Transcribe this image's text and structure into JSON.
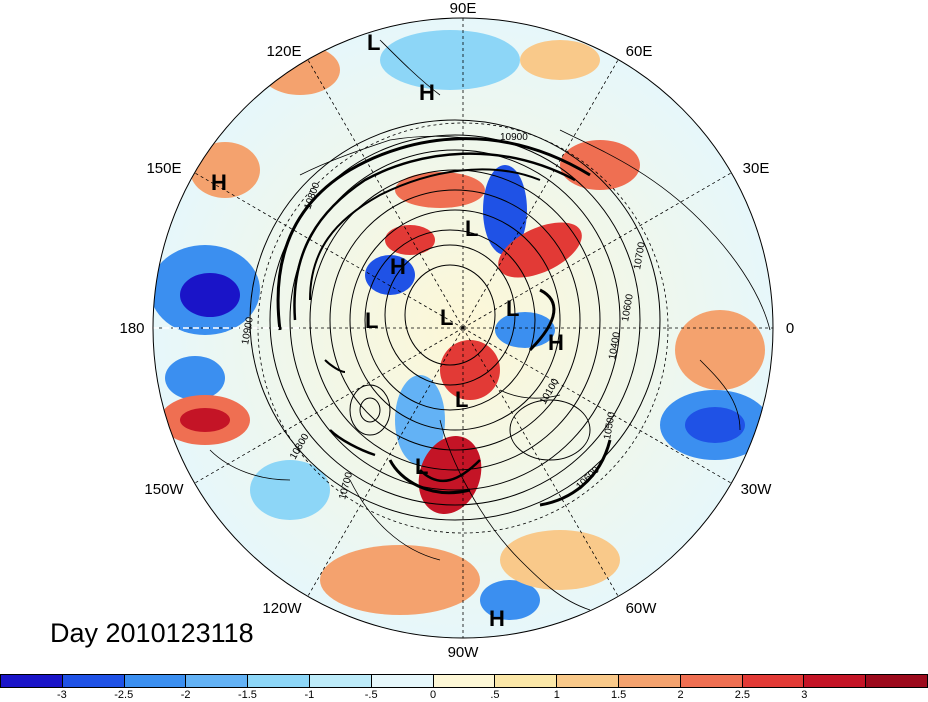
{
  "map": {
    "longitude_labels": [
      {
        "id": "90e",
        "text": "90E"
      },
      {
        "id": "60e",
        "text": "60E"
      },
      {
        "id": "30e",
        "text": "30E"
      },
      {
        "id": "0",
        "text": "0"
      },
      {
        "id": "30w",
        "text": "30W"
      },
      {
        "id": "60w",
        "text": "60W"
      },
      {
        "id": "90w",
        "text": "90W"
      },
      {
        "id": "120w",
        "text": "120W"
      },
      {
        "id": "150w",
        "text": "150W"
      },
      {
        "id": "180",
        "text": "180"
      },
      {
        "id": "150e",
        "text": "150E"
      },
      {
        "id": "120e",
        "text": "120E"
      }
    ],
    "pressure_centers": [
      {
        "type": "L",
        "text": "L"
      },
      {
        "type": "H",
        "text": "H"
      },
      {
        "type": "H",
        "text": "H"
      },
      {
        "type": "L",
        "text": "L"
      },
      {
        "type": "H",
        "text": "H"
      },
      {
        "type": "L",
        "text": "L"
      },
      {
        "type": "L",
        "text": "L"
      },
      {
        "type": "L",
        "text": "L"
      },
      {
        "type": "H",
        "text": "H"
      },
      {
        "type": "L",
        "text": "L"
      },
      {
        "type": "L",
        "text": "L"
      },
      {
        "type": "H",
        "text": "H"
      }
    ],
    "contour_labels": [
      "10900",
      "10800",
      "10700",
      "10600",
      "10500",
      "10400",
      "10100",
      "10900",
      "10800",
      "10700",
      "10600"
    ]
  },
  "day_label": "Day 2010123118",
  "colorbar": {
    "colors": [
      "#1a14c8",
      "#1f52e6",
      "#3b8ff0",
      "#63b2f5",
      "#8dd6f7",
      "#bdebf9",
      "#e6f7fb",
      "#fdf7d6",
      "#fbe7a8",
      "#f9c98a",
      "#f4a26e",
      "#ef6f52",
      "#e23a36",
      "#c41426",
      "#9c0a1c"
    ],
    "ticks": [
      "-3",
      "-2.5",
      "-2",
      "-1.5",
      "-1",
      "-.5",
      "0",
      ".5",
      "1",
      "1.5",
      "2",
      "2.5",
      "3"
    ]
  }
}
